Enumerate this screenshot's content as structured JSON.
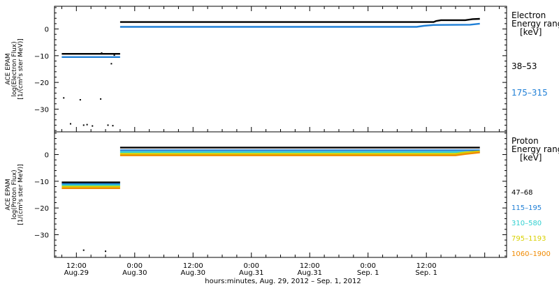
{
  "chart_data": [
    {
      "type": "scatter",
      "ylabel_lines": [
        "ACE EPAM",
        "log(Electron Flux)",
        "[1/(cm²s ster MeV)]"
      ],
      "yticks": [
        0,
        -10,
        -20,
        -30
      ],
      "ylim": [
        -38.5,
        8.5
      ],
      "legend_title_lines": [
        "Electron",
        "Energy ranges",
        "[keV]"
      ],
      "grid": false,
      "series": [
        {
          "name": "38–53",
          "color": "#000000",
          "segments": [
            {
              "points": [
                [
                  -3.0,
                  -9.3
                ],
                [
                  9.0,
                  -9.3
                ]
              ]
            },
            {
              "points": [
                [
                  9.0,
                  2.6
                ],
                [
                  73.5,
                  2.6
                ],
                [
                  74.0,
                  3.0
                ],
                [
                  75.0,
                  3.3
                ],
                [
                  80.0,
                  3.3
                ],
                [
                  81.5,
                  3.7
                ],
                [
                  83.0,
                  3.8
                ]
              ]
            }
          ]
        },
        {
          "name": "175–315",
          "color": "#1f7fd6",
          "segments": [
            {
              "points": [
                [
                  -3.0,
                  -10.5
                ],
                [
                  9.0,
                  -10.5
                ]
              ]
            },
            {
              "points": [
                [
                  9.0,
                  0.8
                ],
                [
                  70.0,
                  0.8
                ],
                [
                  71.5,
                  1.2
                ],
                [
                  73.5,
                  1.5
                ],
                [
                  81.0,
                  1.6
                ],
                [
                  83.0,
                  2.0
                ]
              ]
            }
          ]
        }
      ],
      "scatter_points": [
        [
          -2.6,
          -25.8
        ],
        [
          -1.2,
          -35.5
        ],
        [
          0.8,
          -26.5
        ],
        [
          1.5,
          -36.0
        ],
        [
          2.2,
          -35.8
        ],
        [
          3.3,
          -36.3
        ],
        [
          5.0,
          -26.2
        ],
        [
          6.5,
          -36.0
        ],
        [
          7.5,
          -36.2
        ],
        [
          7.2,
          -13.0
        ],
        [
          7.8,
          -9.8
        ],
        [
          5.2,
          -9.0
        ]
      ]
    },
    {
      "type": "scatter",
      "ylabel_lines": [
        "ACE EPAM",
        "log(Proton Flux)",
        "[1/(cm²s ster MeV)]"
      ],
      "yticks": [
        0,
        -10,
        -20,
        -30
      ],
      "ylim": [
        -38.5,
        8.5
      ],
      "legend_title_lines": [
        "Proton",
        "Energy ranges",
        "[keV]"
      ],
      "grid": false,
      "series": [
        {
          "name": "47–68",
          "color": "#000000",
          "segments": [
            {
              "points": [
                [
                  -3.0,
                  -10.4
                ],
                [
                  9.0,
                  -10.4
                ]
              ]
            },
            {
              "points": [
                [
                  9.0,
                  2.6
                ],
                [
                  83.0,
                  2.6
                ]
              ]
            }
          ]
        },
        {
          "name": "115–195",
          "color": "#1f7fd6",
          "segments": [
            {
              "points": [
                [
                  -3.0,
                  -11.0
                ],
                [
                  9.0,
                  -11.0
                ]
              ]
            },
            {
              "points": [
                [
                  9.0,
                  1.6
                ],
                [
                  83.0,
                  1.6
                ]
              ]
            }
          ]
        },
        {
          "name": "310–580",
          "color": "#2fd0d0",
          "segments": [
            {
              "points": [
                [
                  -3.0,
                  -11.5
                ],
                [
                  9.0,
                  -11.5
                ]
              ]
            },
            {
              "points": [
                [
                  9.0,
                  0.9
                ],
                [
                  83.0,
                  0.9
                ]
              ]
            }
          ]
        },
        {
          "name": "795–1193",
          "color": "#d8d000",
          "segments": [
            {
              "points": [
                [
                  -3.0,
                  -12.0
                ],
                [
                  9.0,
                  -12.0
                ]
              ]
            },
            {
              "points": [
                [
                  9.0,
                  0.3
                ],
                [
                  78.0,
                  0.3
                ],
                [
                  80.0,
                  0.8
                ],
                [
                  83.0,
                  1.2
                ]
              ]
            }
          ]
        },
        {
          "name": "1060–1900",
          "color": "#f08a00",
          "segments": [
            {
              "points": [
                [
                  -3.0,
                  -12.6
                ],
                [
                  9.0,
                  -12.6
                ]
              ]
            },
            {
              "points": [
                [
                  9.0,
                  -0.3
                ],
                [
                  78.0,
                  -0.3
                ],
                [
                  80.0,
                  0.2
                ],
                [
                  83.0,
                  0.8
                ]
              ]
            }
          ]
        }
      ],
      "scatter_points": [
        [
          1.5,
          -35.8
        ],
        [
          6.0,
          -36.2
        ]
      ]
    }
  ],
  "x_axis": {
    "range_hours": [
      -4.5,
      88.5
    ],
    "ticks": [
      {
        "hours": 0,
        "time": "12:00",
        "date": "Aug.29"
      },
      {
        "hours": 12,
        "time": "0:00",
        "date": "Aug.30"
      },
      {
        "hours": 24,
        "time": "12:00",
        "date": "Aug.30"
      },
      {
        "hours": 36,
        "time": "0:00",
        "date": "Aug.31"
      },
      {
        "hours": 48,
        "time": "12:00",
        "date": "Aug.31"
      },
      {
        "hours": 60,
        "time": "0:00",
        "date": "Sep. 1"
      },
      {
        "hours": 72,
        "time": "12:00",
        "date": "Sep. 1"
      }
    ],
    "xlabel": "hours:minutes, Aug. 29, 2012 – Sep.  1, 2012"
  }
}
